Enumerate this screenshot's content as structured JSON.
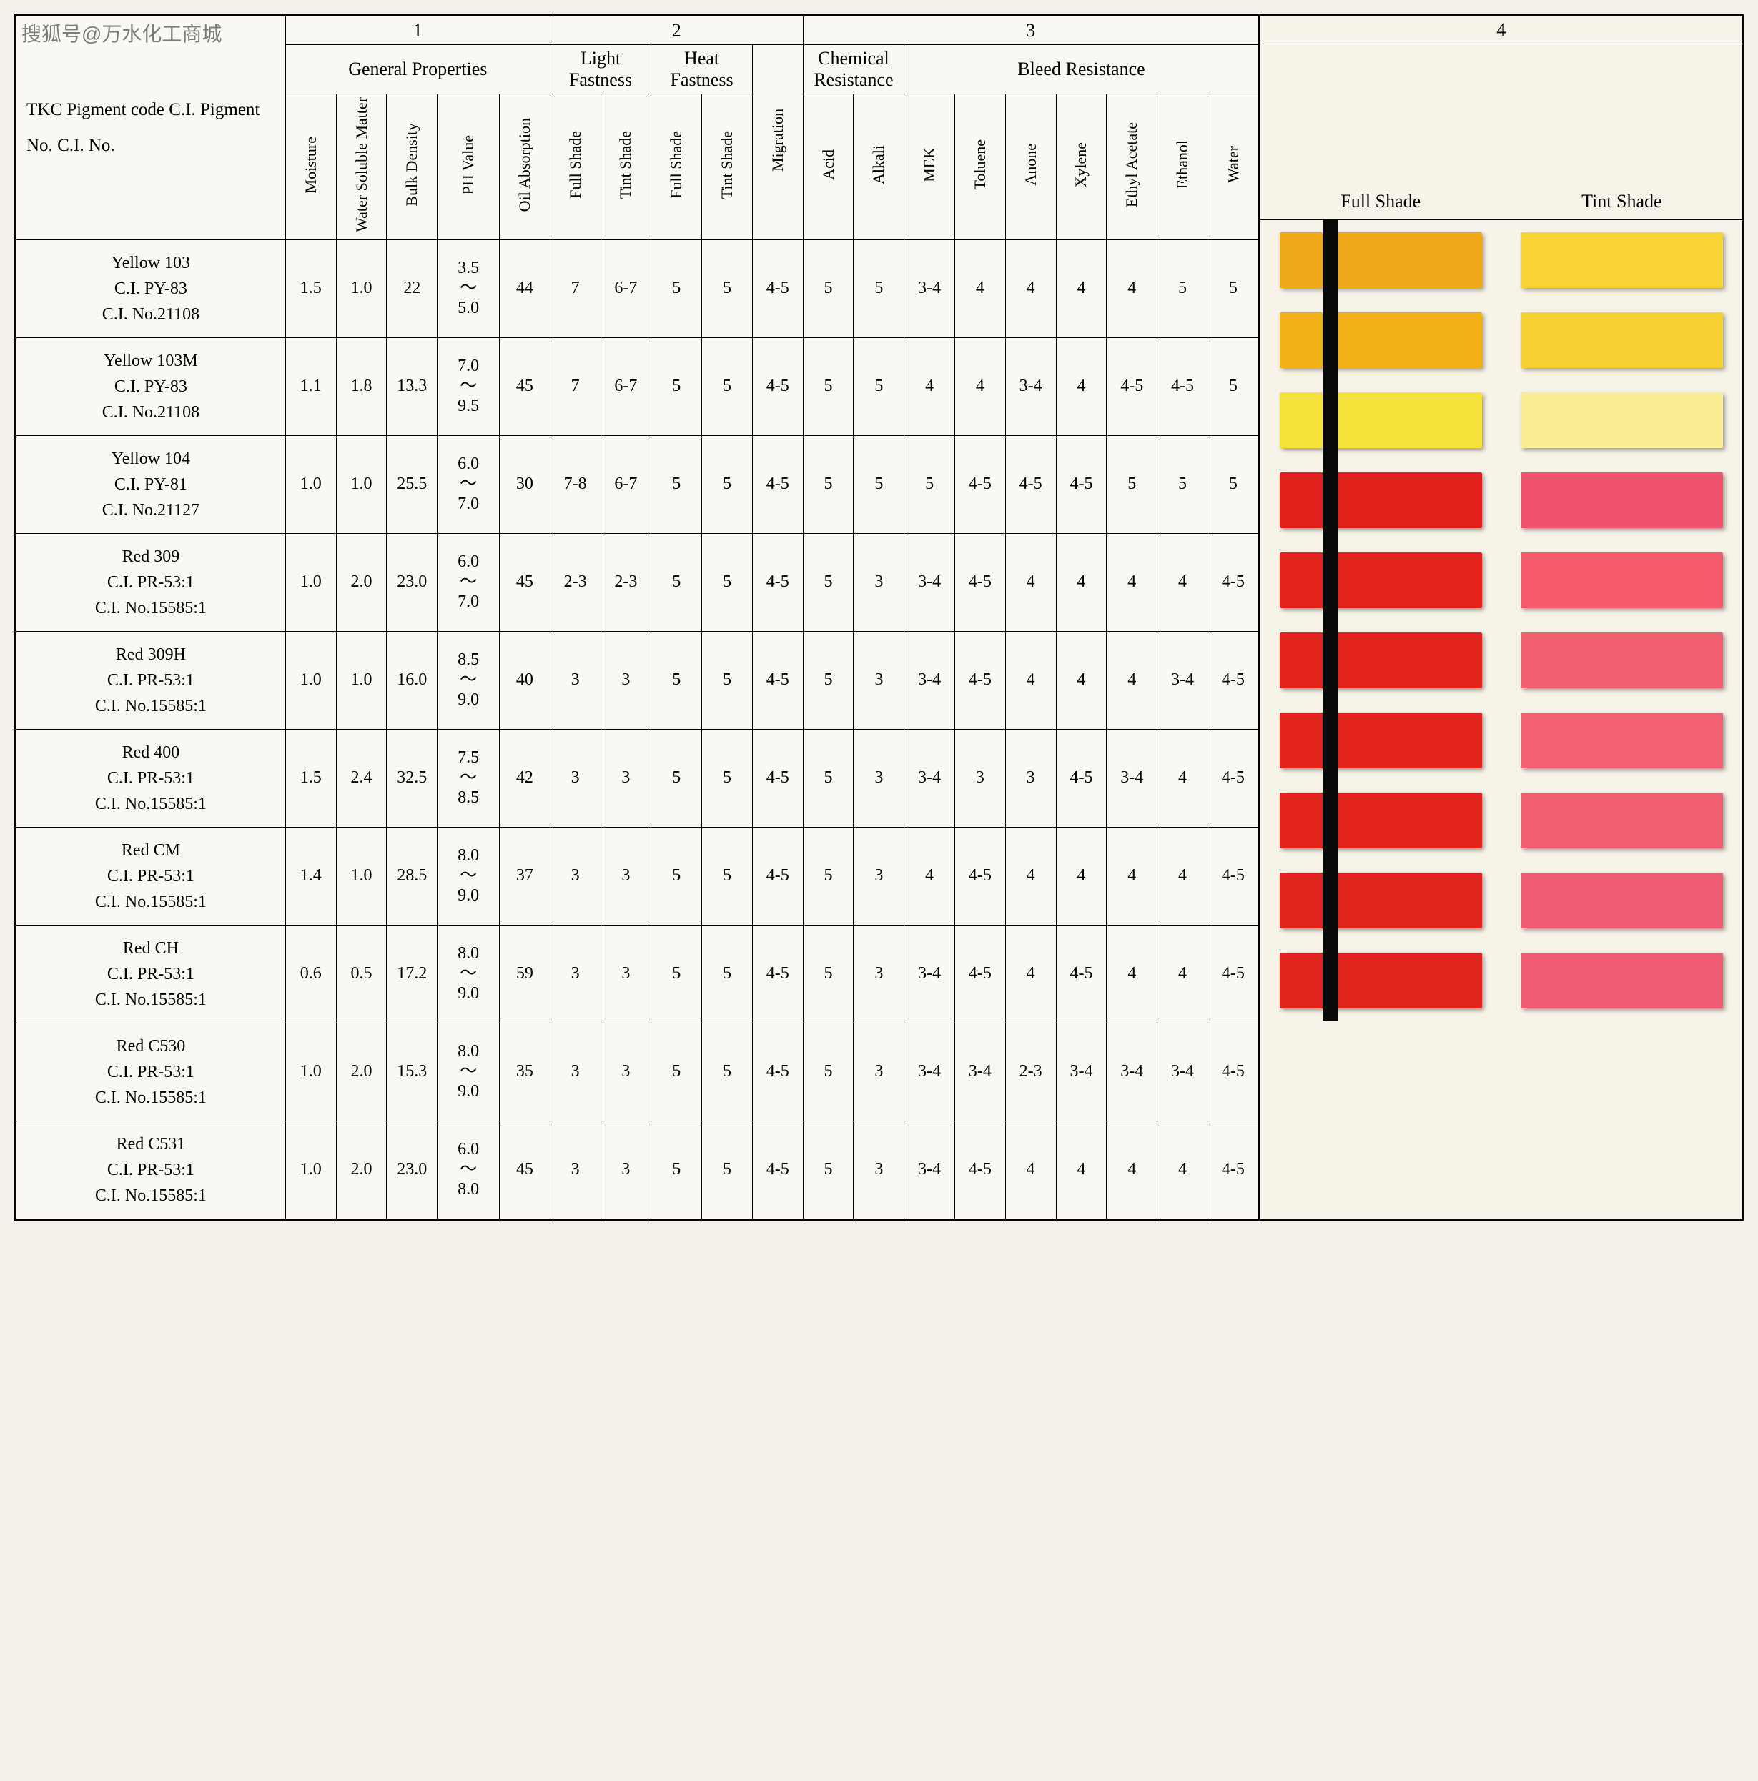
{
  "watermark": "搜狐号@万水化工商城",
  "sections": {
    "s1": "1",
    "s2": "2",
    "s3": "3",
    "s4": "4"
  },
  "groups": {
    "general": "General Properties",
    "light": "Light Fastness",
    "heat": "Heat Fastness",
    "chem": "Chemical Resistance",
    "bleed": "Bleed Resistance"
  },
  "leftHeader": {
    "l1": "TKC Pigment code",
    "l2": "C.I. Pigment No.",
    "l3": "C.I. No."
  },
  "cols": {
    "c0": "Moisture",
    "c1": "Water Soluble Matter",
    "c2": "Bulk Density",
    "c3": "PH Value",
    "c4": "Oil Absorption",
    "c5": "Full Shade",
    "c6": "Tint Shade",
    "c7": "Full Shade",
    "c8": "Tint Shade",
    "c9": "Migration",
    "c10": "Acid",
    "c11": "Alkali",
    "c12": "MEK",
    "c13": "Toluene",
    "c14": "Anone",
    "c15": "Xylene",
    "c16": "Ethyl Acetate",
    "c17": "Ethanol",
    "c18": "Water"
  },
  "swatchHeaders": {
    "full": "Full Shade",
    "tint": "Tint Shade"
  },
  "phTilde": "〜",
  "rows": [
    {
      "name": "Yellow 103",
      "ci": "C.I. PY-83",
      "cino": "C.I. No.21108",
      "v": [
        "1.5",
        "1.0",
        "22",
        "3.5|5.0",
        "44",
        "7",
        "6-7",
        "5",
        "5",
        "4-5",
        "5",
        "5",
        "3-4",
        "4",
        "4",
        "4",
        "4",
        "5",
        "5"
      ],
      "full": "#f0a818",
      "tint": "#f7d333"
    },
    {
      "name": "Yellow 103M",
      "ci": "C.I. PY-83",
      "cino": "C.I. No.21108",
      "v": [
        "1.1",
        "1.8",
        "13.3",
        "7.0|9.5",
        "45",
        "7",
        "6-7",
        "5",
        "5",
        "4-5",
        "5",
        "5",
        "4",
        "4",
        "3-4",
        "4",
        "4-5",
        "4-5",
        "5"
      ],
      "full": "#f1b015",
      "tint": "#f8d232"
    },
    {
      "name": "Yellow 104",
      "ci": "C.I. PY-81",
      "cino": "C.I. No.21127",
      "v": [
        "1.0",
        "1.0",
        "25.5",
        "6.0|7.0",
        "30",
        "7-8",
        "6-7",
        "5",
        "5",
        "4-5",
        "5",
        "5",
        "5",
        "4-5",
        "4-5",
        "4-5",
        "5",
        "5",
        "5"
      ],
      "full": "#f4e13a",
      "tint": "#f9ee94"
    },
    {
      "name": "Red 309",
      "ci": "C.I. PR-53:1",
      "cino": "C.I. No.15585:1",
      "v": [
        "1.0",
        "2.0",
        "23.0",
        "6.0|7.0",
        "45",
        "2-3",
        "2-3",
        "5",
        "5",
        "4-5",
        "5",
        "3",
        "3-4",
        "4-5",
        "4",
        "4",
        "4",
        "4",
        "4-5"
      ],
      "full": "#e1201b",
      "tint": "#f0536e"
    },
    {
      "name": "Red 309H",
      "ci": "C.I. PR-53:1",
      "cino": "C.I. No.15585:1",
      "v": [
        "1.0",
        "1.0",
        "16.0",
        "8.5|9.0",
        "40",
        "3",
        "3",
        "5",
        "5",
        "4-5",
        "5",
        "3",
        "3-4",
        "4-5",
        "4",
        "4",
        "4",
        "3-4",
        "4-5"
      ],
      "full": "#e3221c",
      "tint": "#f45a6a"
    },
    {
      "name": "Red 400",
      "ci": "C.I. PR-53:1",
      "cino": "C.I. No.15585:1",
      "v": [
        "1.5",
        "2.4",
        "32.5",
        "7.5|8.5",
        "42",
        "3",
        "3",
        "5",
        "5",
        "4-5",
        "5",
        "3",
        "3-4",
        "3",
        "3",
        "4-5",
        "3-4",
        "4",
        "4-5"
      ],
      "full": "#e2231c",
      "tint": "#f25f70"
    },
    {
      "name": "Red CM",
      "ci": "C.I. PR-53:1",
      "cino": "C.I. No.15585:1",
      "v": [
        "1.4",
        "1.0",
        "28.5",
        "8.0|9.0",
        "37",
        "3",
        "3",
        "5",
        "5",
        "4-5",
        "5",
        "3",
        "4",
        "4-5",
        "4",
        "4",
        "4",
        "4",
        "4-5"
      ],
      "full": "#e2241d",
      "tint": "#f16073"
    },
    {
      "name": "Red CH",
      "ci": "C.I. PR-53:1",
      "cino": "C.I. No.15585:1",
      "v": [
        "0.6",
        "0.5",
        "17.2",
        "8.0|9.0",
        "59",
        "3",
        "3",
        "5",
        "5",
        "4-5",
        "5",
        "3",
        "3-4",
        "4-5",
        "4",
        "4-5",
        "4",
        "4",
        "4-5"
      ],
      "full": "#e1231c",
      "tint": "#f05e72"
    },
    {
      "name": "Red C530",
      "ci": "C.I. PR-53:1",
      "cino": "C.I. No.15585:1",
      "v": [
        "1.0",
        "2.0",
        "15.3",
        "8.0|9.0",
        "35",
        "3",
        "3",
        "5",
        "5",
        "4-5",
        "5",
        "3",
        "3-4",
        "3-4",
        "2-3",
        "3-4",
        "3-4",
        "3-4",
        "4-5"
      ],
      "full": "#e0231d",
      "tint": "#ef5d73"
    },
    {
      "name": "Red C531",
      "ci": "C.I. PR-53:1",
      "cino": "C.I. No.15585:1",
      "v": [
        "1.0",
        "2.0",
        "23.0",
        "6.0|8.0",
        "45",
        "3",
        "3",
        "5",
        "5",
        "4-5",
        "5",
        "3",
        "3-4",
        "4-5",
        "4",
        "4",
        "4",
        "4",
        "4-5"
      ],
      "full": "#e0231d",
      "tint": "#ef5d73"
    }
  ],
  "style": {
    "page_bg": "#f4f0e8",
    "sheet_bg": "#faf8f2",
    "border_color": "#000000",
    "strip_color": "#0a0a0a",
    "font_family": "Times New Roman",
    "header_fontsize_pt": 20,
    "cell_fontsize_pt": 18,
    "swatch_shadow": "3px 3px 6px rgba(0,0,0,0.35)"
  }
}
